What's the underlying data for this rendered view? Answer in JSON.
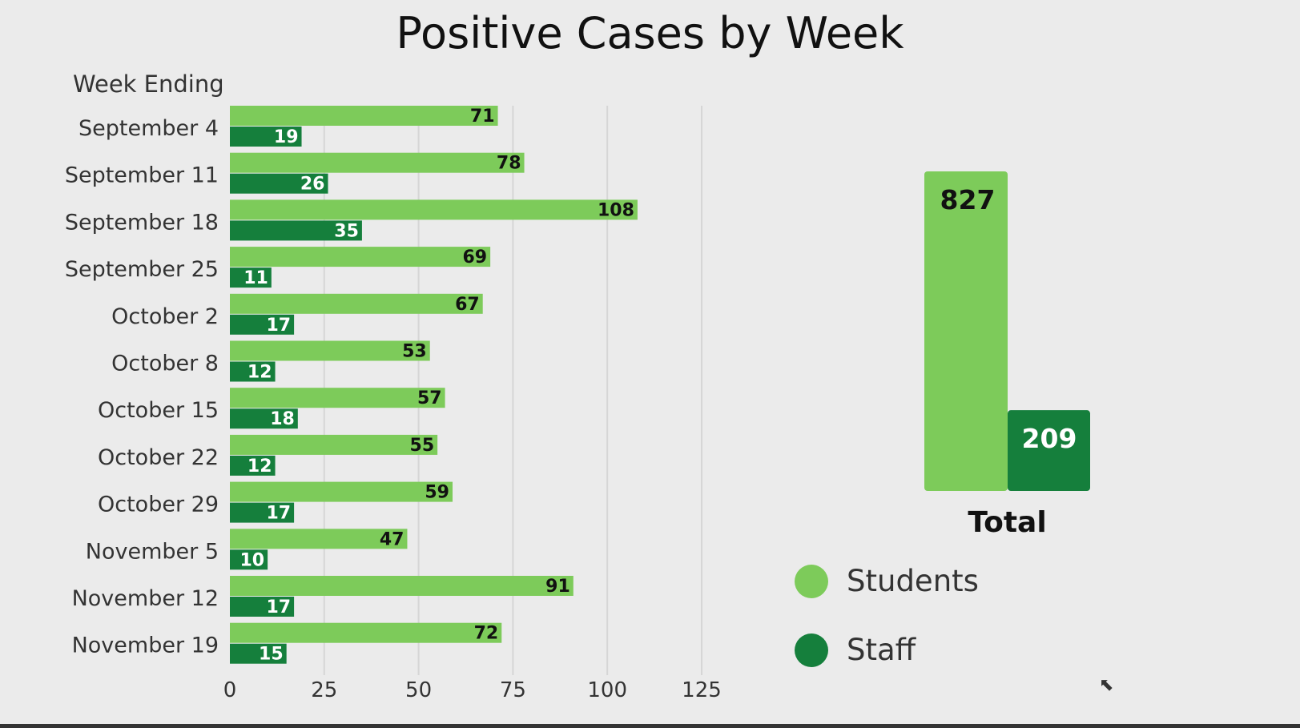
{
  "chart_data": {
    "type": "bar",
    "orientation": "horizontal",
    "title": "Positive Cases by Week",
    "ylabel": "Week Ending",
    "xlabel": "",
    "xlim": [
      0,
      125
    ],
    "xticks": [
      0,
      25,
      50,
      75,
      100,
      125
    ],
    "grid": true,
    "categories": [
      "September 4",
      "September 11",
      "September 18",
      "September 25",
      "October 2",
      "October 8",
      "October 15",
      "October 22",
      "October 29",
      "November 5",
      "November 12",
      "November 19"
    ],
    "series": [
      {
        "name": "Students",
        "color": "#7dcb5a",
        "values": [
          71,
          78,
          108,
          69,
          67,
          53,
          57,
          55,
          59,
          47,
          91,
          72
        ]
      },
      {
        "name": "Staff",
        "color": "#157f3c",
        "values": [
          19,
          26,
          35,
          11,
          17,
          12,
          18,
          12,
          17,
          10,
          17,
          15
        ]
      }
    ],
    "totals": {
      "label": "Total",
      "values": [
        827,
        209
      ]
    },
    "legend": "bottom-right"
  }
}
